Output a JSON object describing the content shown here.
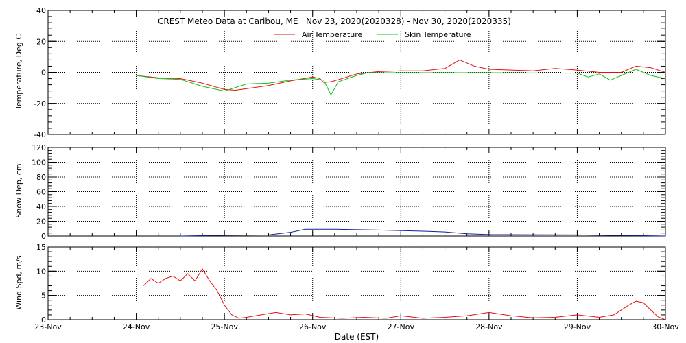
{
  "title_text": "CREST Meteo Data at Caribou, ME   Nov 23, 2020(2020328) - Nov 30, 2020(2020335)",
  "xlabel": "Date (EST)",
  "x_tick_labels": [
    "23-Nov",
    "24-Nov",
    "25-Nov",
    "26-Nov",
    "27-Nov",
    "28-Nov",
    "29-Nov",
    "30-Nov"
  ],
  "colors": {
    "air": "#e01010",
    "skin": "#10c010",
    "snow": "#1020a0",
    "wind": "#e01010",
    "frame": "#000000",
    "grid": "#000000"
  },
  "chart_data": [
    {
      "type": "line",
      "id": "temperature",
      "ylabel": "Temperature, Deg C",
      "ylim": [
        -40,
        40
      ],
      "y_ticks": [
        -40,
        -20,
        0,
        20,
        40
      ],
      "xlim": [
        "2020-11-23",
        "2020-11-30"
      ],
      "legend_placement": "top-center",
      "grid": true,
      "series": [
        {
          "name": "Air Temperature",
          "color": "#e01010",
          "points": [
            [
              "2020-11-24 00:00",
              -2
            ],
            [
              "2020-11-24 06:00",
              -3.5
            ],
            [
              "2020-11-24 12:00",
              -4
            ],
            [
              "2020-11-24 18:00",
              -7
            ],
            [
              "2020-11-25 00:00",
              -11
            ],
            [
              "2020-11-25 03:00",
              -11.5
            ],
            [
              "2020-11-25 06:00",
              -10.5
            ],
            [
              "2020-11-25 12:00",
              -8.5
            ],
            [
              "2020-11-25 18:00",
              -5.5
            ],
            [
              "2020-11-26 00:00",
              -3
            ],
            [
              "2020-11-26 02:00",
              -4
            ],
            [
              "2020-11-26 03:00",
              -6.5
            ],
            [
              "2020-11-26 05:00",
              -6
            ],
            [
              "2020-11-26 08:00",
              -4
            ],
            [
              "2020-11-26 12:00",
              -1
            ],
            [
              "2020-11-26 18:00",
              0.5
            ],
            [
              "2020-11-27 00:00",
              1
            ],
            [
              "2020-11-27 06:00",
              1
            ],
            [
              "2020-11-27 12:00",
              2.5
            ],
            [
              "2020-11-27 16:00",
              8
            ],
            [
              "2020-11-27 20:00",
              4
            ],
            [
              "2020-11-28 00:00",
              2
            ],
            [
              "2020-11-28 06:00",
              1.5
            ],
            [
              "2020-11-28 12:00",
              1
            ],
            [
              "2020-11-28 18:00",
              2.5
            ],
            [
              "2020-11-29 00:00",
              1.5
            ],
            [
              "2020-11-29 06:00",
              0
            ],
            [
              "2020-11-29 12:00",
              0
            ],
            [
              "2020-11-29 16:00",
              4
            ],
            [
              "2020-11-29 20:00",
              3
            ],
            [
              "2020-11-30 00:00",
              0
            ]
          ]
        },
        {
          "name": "Skin Temperature",
          "color": "#10c010",
          "points": [
            [
              "2020-11-24 00:00",
              -2
            ],
            [
              "2020-11-24 06:00",
              -4
            ],
            [
              "2020-11-24 12:00",
              -4.5
            ],
            [
              "2020-11-24 18:00",
              -9
            ],
            [
              "2020-11-25 00:00",
              -12
            ],
            [
              "2020-11-25 06:00",
              -7.5
            ],
            [
              "2020-11-25 12:00",
              -7
            ],
            [
              "2020-11-25 18:00",
              -5
            ],
            [
              "2020-11-26 00:00",
              -4
            ],
            [
              "2020-11-26 03:00",
              -5
            ],
            [
              "2020-11-26 05:00",
              -14.5
            ],
            [
              "2020-11-26 07:00",
              -6
            ],
            [
              "2020-11-26 12:00",
              -2
            ],
            [
              "2020-11-26 15:00",
              -0.2
            ],
            [
              "2020-11-27 00:00",
              -0.2
            ],
            [
              "2020-11-28 00:00",
              -0.2
            ],
            [
              "2020-11-29 00:00",
              -0.5
            ],
            [
              "2020-11-29 03:00",
              -3
            ],
            [
              "2020-11-29 06:00",
              -1
            ],
            [
              "2020-11-29 09:00",
              -5
            ],
            [
              "2020-11-29 12:00",
              -2
            ],
            [
              "2020-11-29 16:00",
              2
            ],
            [
              "2020-11-29 20:00",
              -2
            ],
            [
              "2020-11-30 00:00",
              -4
            ]
          ]
        }
      ]
    },
    {
      "type": "line",
      "id": "snow",
      "ylabel": "Snow Dep, cm",
      "ylim": [
        0,
        120
      ],
      "y_ticks": [
        0,
        20,
        40,
        60,
        80,
        100,
        120
      ],
      "xlim": [
        "2020-11-23",
        "2020-11-30"
      ],
      "grid": true,
      "series": [
        {
          "color": "#1020a0",
          "points": [
            [
              "2020-11-24 12:00",
              0
            ],
            [
              "2020-11-25 00:00",
              1
            ],
            [
              "2020-11-25 12:00",
              1.5
            ],
            [
              "2020-11-25 18:00",
              5
            ],
            [
              "2020-11-25 22:00",
              9
            ],
            [
              "2020-11-26 06:00",
              9
            ],
            [
              "2020-11-26 18:00",
              8
            ],
            [
              "2020-11-27 06:00",
              6.5
            ],
            [
              "2020-11-27 12:00",
              5.5
            ],
            [
              "2020-11-27 18:00",
              3
            ],
            [
              "2020-11-28 00:00",
              2
            ],
            [
              "2020-11-29 00:00",
              1.5
            ],
            [
              "2020-11-29 18:00",
              0.5
            ],
            [
              "2020-11-30 00:00",
              0
            ]
          ]
        }
      ]
    },
    {
      "type": "line",
      "id": "wind",
      "ylabel": "Wind Spd, m/s",
      "ylim": [
        0,
        15
      ],
      "y_ticks": [
        0,
        5,
        10,
        15
      ],
      "xlim": [
        "2020-11-23",
        "2020-11-30"
      ],
      "grid": true,
      "series": [
        {
          "color": "#e01010",
          "points": [
            [
              "2020-11-24 02:00",
              7
            ],
            [
              "2020-11-24 04:00",
              8.5
            ],
            [
              "2020-11-24 06:00",
              7.5
            ],
            [
              "2020-11-24 08:00",
              8.5
            ],
            [
              "2020-11-24 10:00",
              9
            ],
            [
              "2020-11-24 12:00",
              8
            ],
            [
              "2020-11-24 14:00",
              9.5
            ],
            [
              "2020-11-24 16:00",
              8
            ],
            [
              "2020-11-24 18:00",
              10.5
            ],
            [
              "2020-11-24 20:00",
              8
            ],
            [
              "2020-11-24 22:00",
              6
            ],
            [
              "2020-11-25 00:00",
              3
            ],
            [
              "2020-11-25 02:00",
              1
            ],
            [
              "2020-11-25 04:00",
              0.3
            ],
            [
              "2020-11-25 06:00",
              0.5
            ],
            [
              "2020-11-25 10:00",
              1
            ],
            [
              "2020-11-25 14:00",
              1.5
            ],
            [
              "2020-11-25 18:00",
              1
            ],
            [
              "2020-11-25 22:00",
              1.2
            ],
            [
              "2020-11-26 02:00",
              0.5
            ],
            [
              "2020-11-26 08:00",
              0.3
            ],
            [
              "2020-11-26 14:00",
              0.5
            ],
            [
              "2020-11-26 20:00",
              0.3
            ],
            [
              "2020-11-27 00:00",
              0.8
            ],
            [
              "2020-11-27 06:00",
              0.3
            ],
            [
              "2020-11-27 12:00",
              0.5
            ],
            [
              "2020-11-27 18:00",
              0.8
            ],
            [
              "2020-11-28 00:00",
              1.5
            ],
            [
              "2020-11-28 06:00",
              0.8
            ],
            [
              "2020-11-28 12:00",
              0.4
            ],
            [
              "2020-11-28 18:00",
              0.5
            ],
            [
              "2020-11-29 00:00",
              1
            ],
            [
              "2020-11-29 06:00",
              0.5
            ],
            [
              "2020-11-29 10:00",
              1
            ],
            [
              "2020-11-29 14:00",
              3
            ],
            [
              "2020-11-29 16:00",
              3.8
            ],
            [
              "2020-11-29 18:00",
              3.5
            ],
            [
              "2020-11-29 20:00",
              2
            ],
            [
              "2020-11-29 22:00",
              0.6
            ],
            [
              "2020-11-30 00:00",
              0
            ]
          ]
        }
      ]
    }
  ]
}
